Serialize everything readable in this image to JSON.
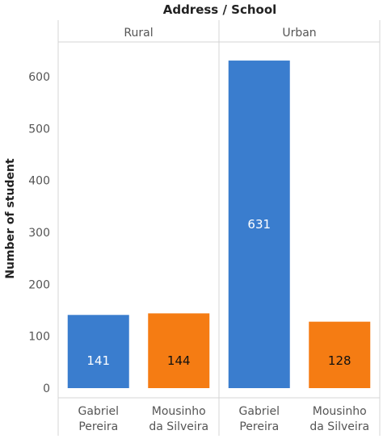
{
  "chart_data": {
    "type": "bar",
    "title": "Address / School",
    "ylabel": "Number of student",
    "ylim": [
      0,
      660
    ],
    "yticks": [
      0,
      100,
      200,
      300,
      400,
      500,
      600
    ],
    "grid": false,
    "panels": [
      {
        "name": "Rural",
        "bars": [
          {
            "category": [
              "Gabriel",
              "Pereira"
            ],
            "value": 141,
            "label": "141",
            "color": "#3a7dce"
          },
          {
            "category": [
              "Mousinho",
              "da Silveira"
            ],
            "value": 144,
            "label": "144",
            "color": "#f57c13"
          }
        ]
      },
      {
        "name": "Urban",
        "bars": [
          {
            "category": [
              "Gabriel",
              "Pereira"
            ],
            "value": 631,
            "label": "631",
            "color": "#3a7dce"
          },
          {
            "category": [
              "Mousinho",
              "da Silveira"
            ],
            "value": 128,
            "label": "128",
            "color": "#f57c13"
          }
        ]
      }
    ]
  }
}
